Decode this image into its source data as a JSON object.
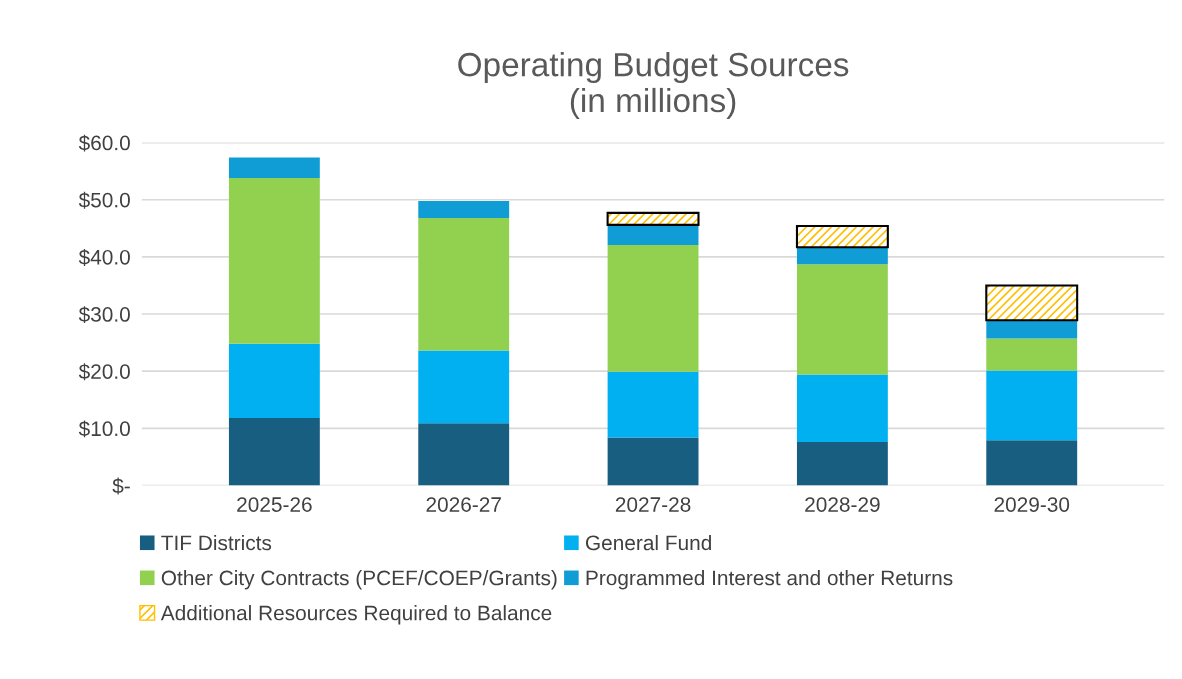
{
  "chart_data": {
    "type": "bar",
    "title": "Operating Budget Sources\n(in millions)",
    "stacked": true,
    "categories": [
      "2025-26",
      "2026-27",
      "2027-28",
      "2028-29",
      "2029-30"
    ],
    "series": [
      {
        "name": "TIF Districts",
        "color": "#175e81",
        "values": [
          11.8,
          10.9,
          8.4,
          7.6,
          7.9
        ]
      },
      {
        "name": "General Fund",
        "color": "#00b0f0",
        "values": [
          13.0,
          12.7,
          11.5,
          11.8,
          12.2
        ]
      },
      {
        "name": "Other City Contracts (PCEF/COEP/Grants)",
        "color": "#92d050",
        "values": [
          29.0,
          23.2,
          22.2,
          19.3,
          5.6
        ]
      },
      {
        "name": "Programmed Interest and other Returns",
        "color": "#109dd6",
        "values": [
          3.6,
          3.0,
          3.5,
          3.0,
          3.2
        ]
      },
      {
        "name": "Additional Resources Required to Balance",
        "color": "#ffc000",
        "values": [
          null,
          null,
          2.1,
          3.7,
          6.1
        ]
      }
    ],
    "ylim": [
      0,
      60
    ],
    "yticks": [
      {
        "value": 0,
        "label": "$-"
      },
      {
        "value": 10,
        "label": "$10.0"
      },
      {
        "value": 20,
        "label": "$20.0"
      },
      {
        "value": 30,
        "label": "$30.0"
      },
      {
        "value": 40,
        "label": "$40.0"
      },
      {
        "value": 50,
        "label": "$50.0"
      },
      {
        "value": 60,
        "label": "$60.0"
      }
    ],
    "grid": "y",
    "legend": "bottom"
  }
}
